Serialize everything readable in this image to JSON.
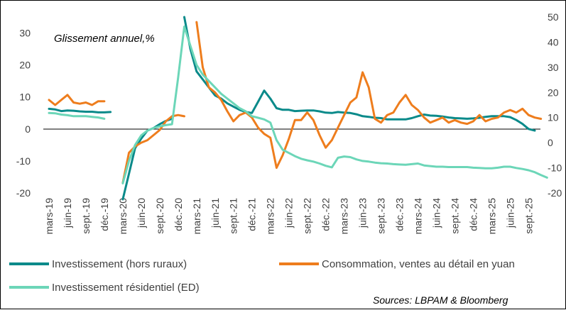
{
  "chart_data": {
    "type": "line",
    "annotation": "Glissement annuel,%",
    "source": "Sources: LBPAM & Bloomberg",
    "left_axis": {
      "ylim": [
        -20,
        35
      ],
      "ticks": [
        -20,
        -10,
        0,
        10,
        20,
        30
      ]
    },
    "right_axis": {
      "ylim": [
        -20,
        50
      ],
      "ticks": [
        -20,
        -10,
        0,
        10,
        20,
        30,
        40,
        50
      ]
    },
    "x_tick_labels": [
      "mars-19",
      "juin-19",
      "sept.-19",
      "déc.-19",
      "mars-20",
      "juin-20",
      "sept.-20",
      "déc.-20",
      "mars-21",
      "juin-21",
      "sept.-21",
      "déc.-21",
      "mars-22",
      "juin-22",
      "sept.-22",
      "déc.-22",
      "mars-23",
      "juin-23",
      "sept.-23",
      "déc.-23",
      "mars-24",
      "juin-24",
      "sept.-24",
      "déc.-24",
      "mars-25",
      "juin-25",
      "sept.-25"
    ],
    "x_tick_index": [
      0,
      3,
      6,
      9,
      12,
      15,
      18,
      21,
      24,
      27,
      30,
      33,
      36,
      39,
      42,
      45,
      48,
      51,
      54,
      57,
      60,
      63,
      66,
      69,
      72,
      75,
      78
    ],
    "series": [
      {
        "name": "Investissement (hors ruraux)",
        "axis": "left",
        "color": "#0a8a8a",
        "values": [
          6.3,
          6.1,
          5.6,
          5.8,
          5.7,
          5.5,
          5.4,
          5.4,
          5.2,
          5.2,
          5.3,
          null,
          -22,
          -14,
          -6,
          -3,
          -0.5,
          0.3,
          1.5,
          2.5,
          3.2,
          null,
          35,
          25,
          18,
          15.5,
          13,
          10.5,
          9.5,
          8,
          7,
          6,
          5.3,
          5,
          8.5,
          12,
          9.5,
          6.5,
          6,
          6,
          5.6,
          5.7,
          5.8,
          5.8,
          5.5,
          5.1,
          5,
          5.3,
          5.1,
          5,
          4.6,
          4,
          3.8,
          3.5,
          3.4,
          3,
          3,
          3,
          3,
          3.4,
          4,
          4.5,
          4.2,
          4.1,
          3.9,
          3.6,
          3.4,
          3.3,
          3.2,
          3.3,
          3.5,
          3.8,
          4,
          4,
          4,
          3.7,
          2.8,
          1.6,
          0,
          -0.5
        ]
      },
      {
        "name": "Consommation, ventes au détail en yuan",
        "axis": "right",
        "color": "#ee7d1d",
        "values": [
          17,
          15,
          17,
          19,
          16,
          15.5,
          16,
          15,
          16.5,
          16.5,
          null,
          null,
          -16,
          -4,
          -1.5,
          0,
          1,
          3,
          5,
          8.5,
          10.5,
          11,
          10.5,
          null,
          48,
          30,
          22,
          20,
          17,
          12.5,
          8.5,
          11,
          12,
          10,
          6,
          3.5,
          2,
          -10,
          -5,
          1.5,
          9,
          9,
          12,
          9,
          3,
          -2,
          1,
          6,
          11,
          16,
          18,
          28,
          22,
          9.5,
          8,
          11,
          12,
          16,
          19,
          15,
          13,
          10,
          8,
          9,
          10,
          8,
          9,
          8,
          7.5,
          8.5,
          11,
          8.5,
          9.5,
          10,
          12,
          13,
          12,
          13.5,
          11,
          10,
          9.5
        ]
      },
      {
        "name": "Investissement résidentiel (ED)",
        "axis": "left",
        "color": "#6cd6b8",
        "values": [
          5,
          4.9,
          4.5,
          4.3,
          4,
          4,
          4,
          3.8,
          3.6,
          3.2,
          null,
          null,
          -17,
          -10,
          -5,
          -2,
          -0.5,
          0.3,
          0.8,
          1.2,
          1.5,
          16,
          32,
          26,
          20,
          17,
          15,
          13,
          11,
          9.5,
          8,
          6.5,
          5.5,
          4,
          3.5,
          3,
          2,
          -3.5,
          -6.5,
          -7.5,
          -8.5,
          -9.3,
          -9.8,
          -10.2,
          -10.8,
          -11.5,
          -12,
          -9,
          -8.6,
          -8.8,
          -9.5,
          -10,
          -10.2,
          -10.5,
          -10.7,
          -10.8,
          -11,
          -11.1,
          -11.2,
          -11,
          -10.8,
          -11.4,
          -11.6,
          -11.8,
          -11.8,
          -11.9,
          -11.9,
          -11.9,
          -11.9,
          -12.1,
          -12.2,
          -12.3,
          -12.3,
          -12.1,
          -11.8,
          -11.8,
          -12.2,
          -12.5,
          -12.9,
          -13.5,
          -14.4,
          -15.2
        ]
      }
    ]
  }
}
